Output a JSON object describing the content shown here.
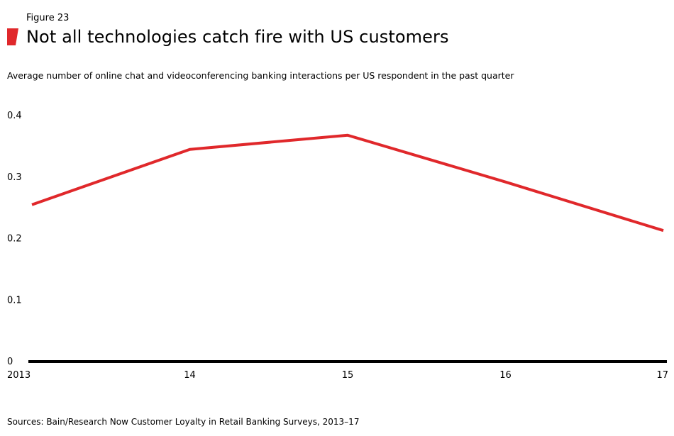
{
  "figure_label": "Figure 23",
  "title": "Not all technologies catch fire with US customers",
  "subtitle": "Average number of online chat and videoconferencing banking interactions per US respondent in the past quarter",
  "source": "Sources: Bain/Research Now Customer Loyalty in Retail Banking Surveys, 2013–17",
  "colors": {
    "accent": "#e0282b",
    "axis": "#000000"
  },
  "chart_data": {
    "type": "line",
    "categories": [
      "2013",
      "14",
      "15",
      "16",
      "17"
    ],
    "series": [
      {
        "values": [
          0.255,
          0.345,
          0.368,
          0.292,
          0.213
        ]
      }
    ],
    "ylim": [
      0,
      0.4
    ],
    "yticks": [
      {
        "value": 0,
        "label": "0"
      },
      {
        "value": 0.1,
        "label": "0.1"
      },
      {
        "value": 0.2,
        "label": "0.2"
      },
      {
        "value": 0.3,
        "label": "0.3"
      },
      {
        "value": 0.4,
        "label": "0.4"
      }
    ],
    "grid": false,
    "legend": "none"
  }
}
